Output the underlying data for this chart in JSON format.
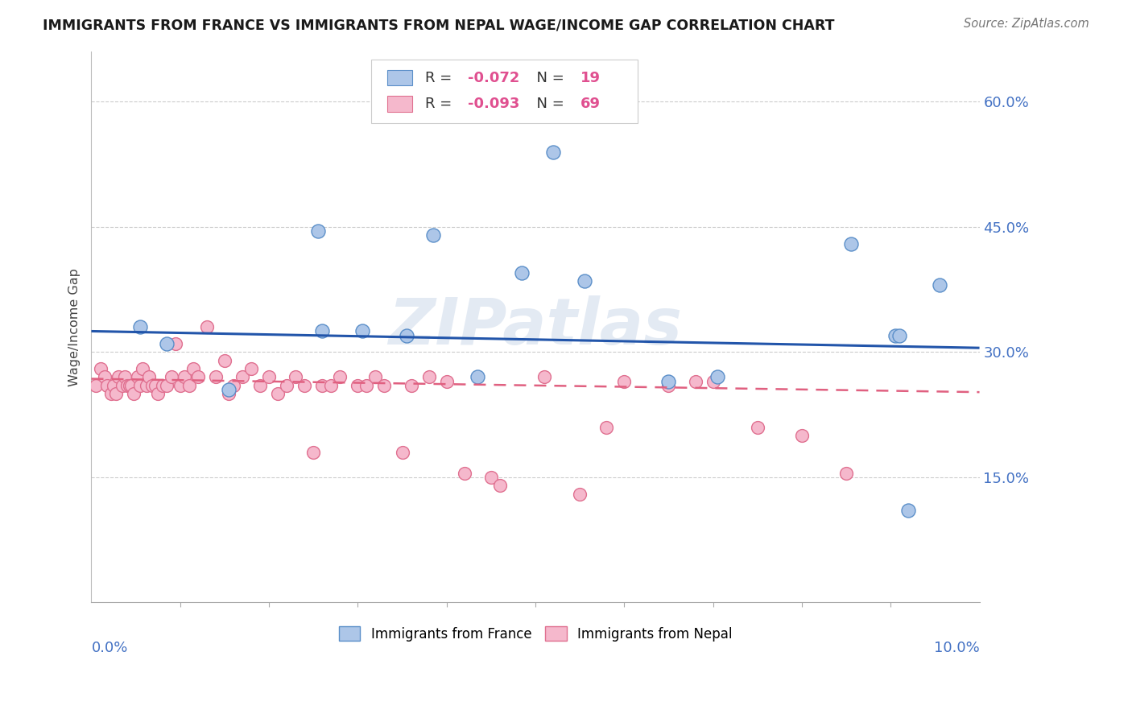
{
  "title": "IMMIGRANTS FROM FRANCE VS IMMIGRANTS FROM NEPAL WAGE/INCOME GAP CORRELATION CHART",
  "source_text": "Source: ZipAtlas.com",
  "ylabel": "Wage/Income Gap",
  "france_color": "#adc6e8",
  "france_edge_color": "#5b8fc9",
  "nepal_color": "#f5b8cc",
  "nepal_edge_color": "#e07090",
  "france_label": "Immigrants from France",
  "nepal_label": "Immigrants from Nepal",
  "france_R": "-0.072",
  "france_N": "19",
  "nepal_R": "-0.093",
  "nepal_N": "69",
  "trend_france_color": "#2255aa",
  "trend_nepal_color": "#e06080",
  "watermark": "ZIPatlas",
  "right_ytick_color": "#4472c4",
  "france_x": [
    0.55,
    0.85,
    1.55,
    2.55,
    2.6,
    3.05,
    3.55,
    3.85,
    4.85,
    5.2,
    6.5,
    7.05,
    8.55,
    9.05,
    9.1,
    9.55,
    9.2,
    4.35,
    5.55
  ],
  "france_y": [
    0.33,
    0.31,
    0.255,
    0.445,
    0.325,
    0.325,
    0.32,
    0.44,
    0.395,
    0.54,
    0.265,
    0.27,
    0.43,
    0.32,
    0.32,
    0.38,
    0.11,
    0.27,
    0.385
  ],
  "nepal_x": [
    0.05,
    0.1,
    0.15,
    0.18,
    0.22,
    0.25,
    0.28,
    0.3,
    0.35,
    0.38,
    0.4,
    0.43,
    0.45,
    0.48,
    0.52,
    0.55,
    0.58,
    0.62,
    0.65,
    0.68,
    0.72,
    0.75,
    0.8,
    0.85,
    0.9,
    0.95,
    1.0,
    1.05,
    1.1,
    1.15,
    1.2,
    1.3,
    1.4,
    1.5,
    1.55,
    1.6,
    1.7,
    1.8,
    1.9,
    2.0,
    2.1,
    2.2,
    2.3,
    2.4,
    2.5,
    2.6,
    2.7,
    2.8,
    3.0,
    3.1,
    3.2,
    3.3,
    3.5,
    3.6,
    3.8,
    4.0,
    4.2,
    4.5,
    4.6,
    5.1,
    5.5,
    5.8,
    6.0,
    6.5,
    6.8,
    7.0,
    7.5,
    8.0,
    8.5
  ],
  "nepal_y": [
    0.26,
    0.28,
    0.27,
    0.26,
    0.25,
    0.26,
    0.25,
    0.27,
    0.26,
    0.27,
    0.26,
    0.26,
    0.26,
    0.25,
    0.27,
    0.26,
    0.28,
    0.26,
    0.27,
    0.26,
    0.26,
    0.25,
    0.26,
    0.26,
    0.27,
    0.31,
    0.26,
    0.27,
    0.26,
    0.28,
    0.27,
    0.33,
    0.27,
    0.29,
    0.25,
    0.26,
    0.27,
    0.28,
    0.26,
    0.27,
    0.25,
    0.26,
    0.27,
    0.26,
    0.18,
    0.26,
    0.26,
    0.27,
    0.26,
    0.26,
    0.27,
    0.26,
    0.18,
    0.26,
    0.27,
    0.265,
    0.155,
    0.15,
    0.14,
    0.27,
    0.13,
    0.21,
    0.265,
    0.26,
    0.265,
    0.265,
    0.21,
    0.2,
    0.155
  ],
  "xlim_min": 0.0,
  "xlim_max": 10.0,
  "ylim_min": 0.0,
  "ylim_max": 0.66,
  "yticks": [
    0.15,
    0.3,
    0.45,
    0.6
  ],
  "ytick_labels": [
    "15.0%",
    "30.0%",
    "45.0%",
    "60.0%"
  ],
  "france_trend_x0": 0.0,
  "france_trend_y0": 0.325,
  "france_trend_x1": 10.0,
  "france_trend_y1": 0.305,
  "nepal_trend_x0": 0.0,
  "nepal_trend_y0": 0.268,
  "nepal_trend_x1": 10.0,
  "nepal_trend_y1": 0.252
}
